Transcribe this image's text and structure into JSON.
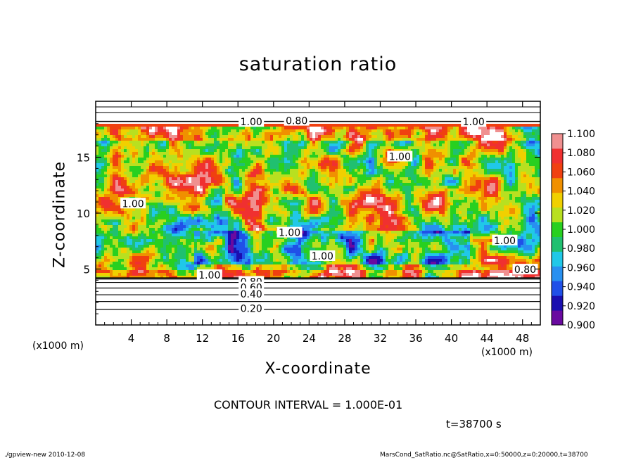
{
  "chart_data": {
    "type": "heatmap",
    "title": "saturation ratio",
    "xlabel": "X-coordinate",
    "ylabel": "Z-coordinate",
    "x_unit_label": "(x1000 m)",
    "y_unit_label": "(x1000 m)",
    "xlim": [
      0,
      50
    ],
    "ylim": [
      0,
      20
    ],
    "x_ticks": [
      4,
      8,
      12,
      16,
      20,
      24,
      28,
      32,
      36,
      40,
      44,
      48
    ],
    "y_ticks": [
      5,
      10,
      15
    ],
    "colorbar": {
      "min": 0.9,
      "max": 1.1,
      "ticks": [
        "0.900",
        "0.920",
        "0.940",
        "0.960",
        "0.980",
        "1.000",
        "1.020",
        "1.040",
        "1.060",
        "1.080",
        "1.100"
      ],
      "colors": [
        "#6a0aa0",
        "#1a0fb0",
        "#2050e8",
        "#2890f0",
        "#20c8e8",
        "#20c070",
        "#28d020",
        "#b8e020",
        "#f0d000",
        "#f09000",
        "#f04010",
        "#f03030",
        "#f09090"
      ]
    },
    "contour_labels": [
      {
        "text": "1.00",
        "x": 17.5,
        "z": 18.1
      },
      {
        "text": "0.80",
        "x": 22.6,
        "z": 18.2
      },
      {
        "text": "1.00",
        "x": 42.5,
        "z": 18.1
      },
      {
        "text": "1.00",
        "x": 34.2,
        "z": 15.0
      },
      {
        "text": "1.00",
        "x": 4.2,
        "z": 10.8
      },
      {
        "text": "1.00",
        "x": 21.8,
        "z": 8.2
      },
      {
        "text": "1.00",
        "x": 25.5,
        "z": 6.1
      },
      {
        "text": "1.00",
        "x": 46.0,
        "z": 7.5
      },
      {
        "text": "1.00",
        "x": 12.8,
        "z": 4.4
      },
      {
        "text": "0.80",
        "x": 48.3,
        "z": 4.9
      },
      {
        "text": "0.80",
        "x": 17.5,
        "z": 3.8
      },
      {
        "text": "0.60",
        "x": 17.5,
        "z": 3.3
      },
      {
        "text": "0.40",
        "x": 17.5,
        "z": 2.7
      },
      {
        "text": "0.20",
        "x": 17.5,
        "z": 1.4
      }
    ],
    "low_contours": [
      0.2,
      0.4,
      0.6,
      0.8
    ],
    "annotation_contour_interval": "CONTOUR INTERVAL = 1.000E-01",
    "annotation_time": "t=38700 s"
  },
  "footer": {
    "left": "./gpview-new  2010-12-08",
    "right": "MarsCond_SatRatio.nc@SatRatio,x=0:50000,z=0:20000,t=38700"
  }
}
